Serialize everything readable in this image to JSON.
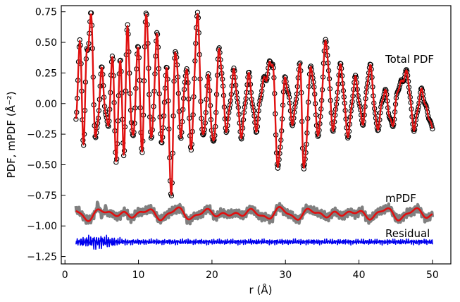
{
  "chart_data": {
    "type": "line",
    "xlabel": "r (Å)",
    "ylabel": "PDF, mPDF (Å⁻²)",
    "xlim": [
      -0.5,
      52.5
    ],
    "ylim": [
      -1.31,
      0.8
    ],
    "xticks": [
      0,
      10,
      20,
      30,
      40,
      50
    ],
    "yticks": [
      0.75,
      0.5,
      0.25,
      0.0,
      -0.25,
      -0.5,
      -0.75,
      -1.0,
      -1.25
    ],
    "xtick_labels": [
      "0",
      "10",
      "20",
      "30",
      "40",
      "50"
    ],
    "ytick_labels": [
      "0.75",
      "0.50",
      "0.25",
      "0.00",
      "−0.25",
      "−0.50",
      "−0.75",
      "−1.00",
      "−1.25"
    ],
    "grid": false,
    "annotations": [
      {
        "text": "Total PDF",
        "x": 43,
        "y": 0.36
      },
      {
        "text": "mPDF",
        "x": 43,
        "y": -0.82
      },
      {
        "text": "Residual",
        "x": 43,
        "y": -1.08
      }
    ],
    "r_range": [
      1.5,
      50.0
    ],
    "series": [
      {
        "role": "total-pdf-observed",
        "style": "open-circles",
        "color": "#000000",
        "key_points": [
          [
            1.5,
            -0.18
          ],
          [
            2.0,
            0.55
          ],
          [
            2.5,
            -0.3
          ],
          [
            3.0,
            0.4
          ],
          [
            3.5,
            0.72
          ],
          [
            4.2,
            -0.3
          ],
          [
            5.0,
            0.25
          ],
          [
            5.8,
            -0.2
          ],
          [
            6.5,
            0.35
          ],
          [
            7.0,
            -0.52
          ],
          [
            7.5,
            0.4
          ],
          [
            8.0,
            -0.4
          ],
          [
            8.5,
            0.6
          ],
          [
            9.2,
            -0.3
          ],
          [
            10.0,
            0.45
          ],
          [
            10.5,
            -0.45
          ],
          [
            11.0,
            0.75
          ],
          [
            11.8,
            -0.3
          ],
          [
            12.5,
            0.55
          ],
          [
            13.2,
            -0.35
          ],
          [
            13.8,
            0.3
          ],
          [
            14.5,
            -0.75
          ],
          [
            15.0,
            0.47
          ],
          [
            15.8,
            -0.25
          ],
          [
            16.5,
            0.3
          ],
          [
            17.2,
            -0.35
          ],
          [
            18.0,
            0.72
          ],
          [
            18.8,
            -0.3
          ],
          [
            19.5,
            0.2
          ],
          [
            20.2,
            -0.35
          ],
          [
            21.0,
            0.43
          ],
          [
            22.0,
            -0.2
          ],
          [
            23.0,
            0.25
          ],
          [
            24.0,
            -0.25
          ],
          [
            25.0,
            0.22
          ],
          [
            26.0,
            -0.2
          ],
          [
            27.0,
            0.18
          ],
          [
            28.2,
            0.35
          ],
          [
            29.0,
            -0.52
          ],
          [
            30.0,
            0.2
          ],
          [
            31.0,
            -0.15
          ],
          [
            32.0,
            0.3
          ],
          [
            32.5,
            -0.55
          ],
          [
            33.5,
            0.3
          ],
          [
            34.5,
            -0.25
          ],
          [
            35.5,
            0.5
          ],
          [
            36.5,
            -0.2
          ],
          [
            37.5,
            0.3
          ],
          [
            38.5,
            -0.25
          ],
          [
            39.5,
            0.2
          ],
          [
            40.5,
            -0.15
          ],
          [
            41.5,
            0.3
          ],
          [
            42.5,
            -0.2
          ],
          [
            43.5,
            0.1
          ],
          [
            44.5,
            -0.18
          ],
          [
            45.5,
            0.15
          ],
          [
            46.5,
            0.25
          ],
          [
            47.5,
            -0.2
          ],
          [
            48.5,
            0.1
          ],
          [
            49.5,
            -0.1
          ],
          [
            50.0,
            -0.22
          ]
        ]
      },
      {
        "role": "total-pdf-fit",
        "style": "line",
        "color": "#e01010"
      },
      {
        "role": "mpdf-data",
        "style": "line",
        "color": "#808080",
        "offset": -0.9
      },
      {
        "role": "mpdf-fit",
        "style": "line",
        "color": "#e01010",
        "offset": -0.9
      },
      {
        "role": "residual",
        "style": "line",
        "color": "#0000ee",
        "offset": -1.13
      }
    ]
  }
}
